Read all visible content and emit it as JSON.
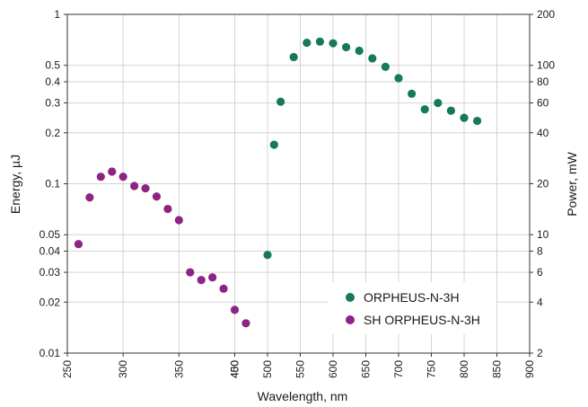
{
  "chart_data": {
    "type": "scatter",
    "xlabel": "Wavelength, nm",
    "ylabel": "Energy, µJ",
    "y2label": "Power, mW",
    "y_scale": "log",
    "grid": true,
    "legend_position": "bottom-right",
    "left_axis": {
      "xlim": [
        250,
        400
      ],
      "xticks": [
        "250",
        "300",
        "350",
        "400"
      ],
      "ylim": [
        0.01,
        1
      ],
      "yticks": [
        "0.01",
        "0.02",
        "0.03",
        "0.04",
        "0.05",
        "0.1",
        "0.2",
        "0.3",
        "0.4",
        "0.5",
        "1"
      ]
    },
    "right_axis": {
      "xlim": [
        450,
        900
      ],
      "xticks": [
        "450",
        "500",
        "550",
        "600",
        "650",
        "700",
        "750",
        "800",
        "850",
        "900"
      ],
      "ylim": [
        2,
        200
      ],
      "yticks": [
        "2",
        "4",
        "6",
        "8",
        "10",
        "20",
        "40",
        "60",
        "80",
        "100",
        "200"
      ]
    },
    "series": [
      {
        "name": "ORPHEUS-N-3H",
        "color": "#167a57",
        "axis": "right",
        "points": [
          [
            500,
            7.6
          ],
          [
            510,
            34
          ],
          [
            520,
            61
          ],
          [
            540,
            112
          ],
          [
            560,
            136
          ],
          [
            580,
            138
          ],
          [
            600,
            135
          ],
          [
            620,
            128
          ],
          [
            640,
            122
          ],
          [
            660,
            110
          ],
          [
            680,
            98
          ],
          [
            700,
            84
          ],
          [
            720,
            68
          ],
          [
            740,
            55
          ],
          [
            760,
            60
          ],
          [
            780,
            54
          ],
          [
            800,
            49
          ],
          [
            820,
            47
          ]
        ]
      },
      {
        "name": "SH ORPHEUS-N-3H",
        "color": "#8c2385",
        "axis": "left",
        "points": [
          [
            260,
            0.044
          ],
          [
            270,
            0.083
          ],
          [
            280,
            0.11
          ],
          [
            290,
            0.118
          ],
          [
            300,
            0.11
          ],
          [
            310,
            0.097
          ],
          [
            320,
            0.094
          ],
          [
            330,
            0.084
          ],
          [
            340,
            0.071
          ],
          [
            350,
            0.061
          ],
          [
            360,
            0.03
          ],
          [
            370,
            0.027
          ],
          [
            380,
            0.028
          ],
          [
            390,
            0.024
          ],
          [
            400,
            0.018
          ],
          [
            410,
            0.015
          ]
        ]
      }
    ]
  }
}
